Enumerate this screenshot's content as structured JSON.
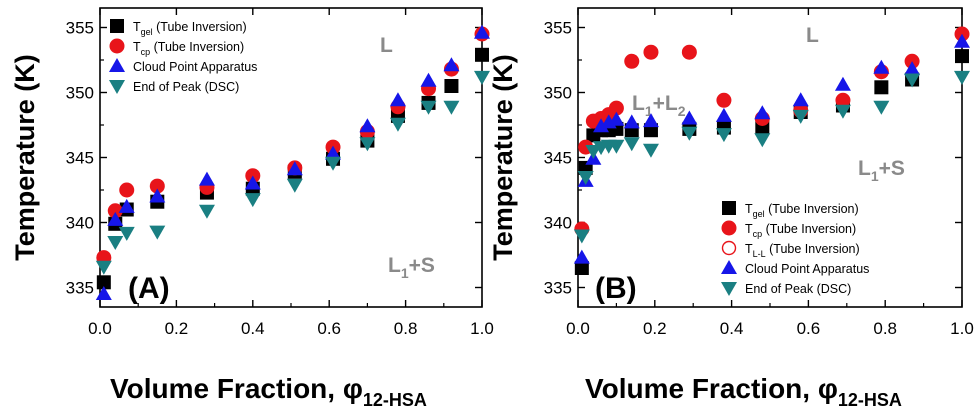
{
  "colors": {
    "gel": "#000000",
    "cp": "#e8141a",
    "ll": "#e8141a",
    "cloud": "#1616e8",
    "dsc": "#1a7f82",
    "region_text": "#8a8a8a"
  },
  "chart_data": [
    {
      "type": "scatter",
      "panel_label": "(A)",
      "xlabel": "Volume Fraction, φ",
      "xlabel_sub": "12-HSA",
      "ylabel": "Temperature (K)",
      "xlim": [
        0.0,
        1.0
      ],
      "ylim": [
        333.5,
        356.5
      ],
      "xticks": [
        "0.0",
        "0.2",
        "0.4",
        "0.6",
        "0.8",
        "1.0"
      ],
      "yticks": [
        "335",
        "340",
        "345",
        "350",
        "355"
      ],
      "region_labels": [
        {
          "main": "L",
          "sub": ""
        },
        {
          "main": "L",
          "sub": "1",
          "rest": "+S"
        }
      ],
      "legend": [
        {
          "key": "gel",
          "main": "T",
          "sub": "gel",
          "rest": " (Tube Inversion)"
        },
        {
          "key": "cp",
          "main": "T",
          "sub": "cp",
          "rest": " (Tube Inversion)"
        },
        {
          "key": "cloud",
          "main": "Cloud Point Apparatus",
          "sub": "",
          "rest": ""
        },
        {
          "key": "dsc",
          "main": "End of Peak (DSC)",
          "sub": "",
          "rest": ""
        }
      ],
      "series": [
        {
          "key": "gel",
          "marker": "square",
          "x": [
            0.01,
            0.04,
            0.07,
            0.15,
            0.28,
            0.4,
            0.51,
            0.61,
            0.7,
            0.78,
            0.86,
            0.92,
            1.0
          ],
          "y": [
            335.4,
            339.9,
            341.0,
            341.6,
            342.3,
            342.6,
            343.9,
            344.9,
            346.3,
            348.2,
            349.2,
            350.5,
            352.9
          ]
        },
        {
          "key": "cp",
          "marker": "circle",
          "x": [
            0.01,
            0.04,
            0.07,
            0.15,
            0.28,
            0.4,
            0.51,
            0.61,
            0.7,
            0.78,
            0.86,
            0.92,
            1.0
          ],
          "y": [
            337.3,
            340.9,
            342.5,
            342.8,
            342.7,
            343.6,
            344.2,
            345.8,
            347.0,
            348.9,
            350.3,
            351.8,
            354.5
          ]
        },
        {
          "key": "cloud",
          "marker": "triangle-up",
          "x": [
            0.01,
            0.04,
            0.07,
            0.15,
            0.28,
            0.4,
            0.51,
            0.61,
            0.7,
            0.78,
            0.86,
            0.92,
            1.0
          ],
          "y": [
            334.5,
            340.2,
            341.2,
            342.0,
            343.3,
            343.0,
            344.1,
            345.3,
            347.4,
            349.4,
            350.9,
            352.1,
            354.6
          ]
        },
        {
          "key": "dsc",
          "marker": "triangle-down",
          "x": [
            0.01,
            0.04,
            0.07,
            0.15,
            0.28,
            0.4,
            0.51,
            0.61,
            0.7,
            0.78,
            0.86,
            0.92,
            1.0
          ],
          "y": [
            336.6,
            338.5,
            339.2,
            339.3,
            340.9,
            341.8,
            342.9,
            344.6,
            346.1,
            347.6,
            348.9,
            348.9,
            351.2
          ]
        }
      ]
    },
    {
      "type": "scatter",
      "panel_label": "(B)",
      "xlabel": "Volume Fraction, φ",
      "xlabel_sub": "12-HSA",
      "ylabel": "Temperature (K)",
      "xlim": [
        0.0,
        1.0
      ],
      "ylim": [
        333.5,
        356.5
      ],
      "xticks": [
        "0.0",
        "0.2",
        "0.4",
        "0.6",
        "0.8",
        "1.0"
      ],
      "yticks": [
        "335",
        "340",
        "345",
        "350",
        "355"
      ],
      "region_labels": [
        {
          "main": "L",
          "sub": ""
        },
        {
          "main": "L",
          "sub": "1",
          "rest": "+L",
          "sub2": "2"
        },
        {
          "main": "L",
          "sub": "1",
          "rest": "+S"
        }
      ],
      "legend": [
        {
          "key": "gel",
          "main": "T",
          "sub": "gel",
          "rest": " (Tube Inversion)"
        },
        {
          "key": "cp",
          "main": "T",
          "sub": "cp",
          "rest": " (Tube Inversion)"
        },
        {
          "key": "ll",
          "main": "T",
          "sub": "L-L",
          "rest": " (Tube Inversion)"
        },
        {
          "key": "cloud",
          "main": "Cloud Point Apparatus",
          "sub": "",
          "rest": ""
        },
        {
          "key": "dsc",
          "main": "End of Peak (DSC)",
          "sub": "",
          "rest": ""
        }
      ],
      "series": [
        {
          "key": "gel",
          "marker": "square",
          "x": [
            0.01,
            0.02,
            0.04,
            0.06,
            0.08,
            0.1,
            0.14,
            0.19,
            0.29,
            0.38,
            0.48,
            0.58,
            0.69,
            0.79,
            0.87,
            1.0
          ],
          "y": [
            336.5,
            344.2,
            346.7,
            347.1,
            347.1,
            347.2,
            347.1,
            347.1,
            347.2,
            347.3,
            347.3,
            348.5,
            349.0,
            350.4,
            351.0,
            352.8
          ]
        },
        {
          "key": "cp",
          "marker": "circle",
          "x": [
            0.01,
            0.02,
            0.04,
            0.06,
            0.08,
            0.1,
            0.14,
            0.19,
            0.29,
            0.38,
            0.48,
            0.58,
            0.69,
            0.79,
            0.87,
            1.0
          ],
          "y": [
            339.5,
            345.8,
            347.8,
            348.0,
            348.3,
            348.8,
            352.4,
            353.1,
            353.1,
            349.4,
            348.0,
            348.6,
            349.4,
            351.6,
            352.4,
            354.5
          ]
        },
        {
          "key": "ll",
          "marker": "open-circle",
          "x": [
            0.14,
            0.19,
            0.29
          ],
          "y": [
            352.4,
            353.1,
            353.1
          ]
        },
        {
          "key": "cloud",
          "marker": "triangle-up",
          "x": [
            0.01,
            0.02,
            0.04,
            0.06,
            0.08,
            0.1,
            0.14,
            0.19,
            0.29,
            0.38,
            0.48,
            0.58,
            0.69,
            0.79,
            0.87,
            1.0
          ],
          "y": [
            337.3,
            343.2,
            344.9,
            347.4,
            347.7,
            347.9,
            347.7,
            347.8,
            348.0,
            348.2,
            348.4,
            349.4,
            350.6,
            351.9,
            351.8,
            353.9
          ]
        },
        {
          "key": "dsc",
          "marker": "triangle-down",
          "x": [
            0.01,
            0.02,
            0.04,
            0.06,
            0.08,
            0.1,
            0.14,
            0.19,
            0.29,
            0.38,
            0.48,
            0.58,
            0.69,
            0.79,
            0.87,
            1.0
          ],
          "y": [
            339.0,
            343.5,
            345.5,
            345.8,
            345.9,
            345.9,
            346.1,
            345.6,
            346.9,
            346.8,
            346.4,
            348.2,
            348.6,
            348.9,
            351.0,
            351.2
          ]
        }
      ]
    }
  ]
}
